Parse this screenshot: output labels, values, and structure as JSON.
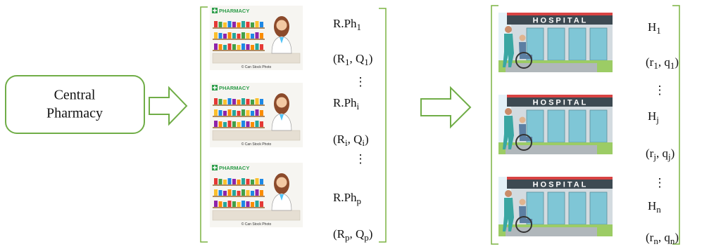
{
  "central": {
    "lines": [
      "Central",
      "Pharmacy"
    ]
  },
  "punctuation": {
    "open": "(",
    "separator": ", ",
    "close": ")"
  },
  "ellipsis": "⋮",
  "pharmacies": [
    {
      "image_title": "PHARMACY",
      "image_credit": "© Can Stock Photo",
      "name": {
        "base": "R.Ph",
        "sub": "1"
      },
      "pair": [
        {
          "base": "R",
          "sub": "1"
        },
        {
          "base": "Q",
          "sub": "1"
        }
      ]
    },
    {
      "image_title": "PHARMACY",
      "image_credit": "© Can Stock Photo",
      "name": {
        "base": "R.Ph",
        "sub": "i"
      },
      "pair": [
        {
          "base": "R",
          "sub": "i"
        },
        {
          "base": "Q",
          "sub": "i"
        }
      ]
    },
    {
      "image_title": "PHARMACY",
      "image_credit": "© Can Stock Photo",
      "name": {
        "base": "R.Ph",
        "sub": "p"
      },
      "pair": [
        {
          "base": "R",
          "sub": "p"
        },
        {
          "base": "Q",
          "sub": "p"
        }
      ]
    }
  ],
  "hospitals": [
    {
      "image_title": "HOSPITAL",
      "name": {
        "base": "H",
        "sub": "1"
      },
      "pair": [
        {
          "base": "r",
          "sub": "1"
        },
        {
          "base": "q",
          "sub": "1"
        }
      ]
    },
    {
      "image_title": "HOSPITAL",
      "name": {
        "base": "H",
        "sub": "j"
      },
      "pair": [
        {
          "base": "r",
          "sub": "j"
        },
        {
          "base": "q",
          "sub": "j"
        }
      ]
    },
    {
      "image_title": "HOSPITAL",
      "name": {
        "base": "H",
        "sub": "n"
      },
      "pair": [
        {
          "base": "r",
          "sub": "n"
        },
        {
          "base": "q",
          "sub": "n"
        }
      ]
    }
  ]
}
